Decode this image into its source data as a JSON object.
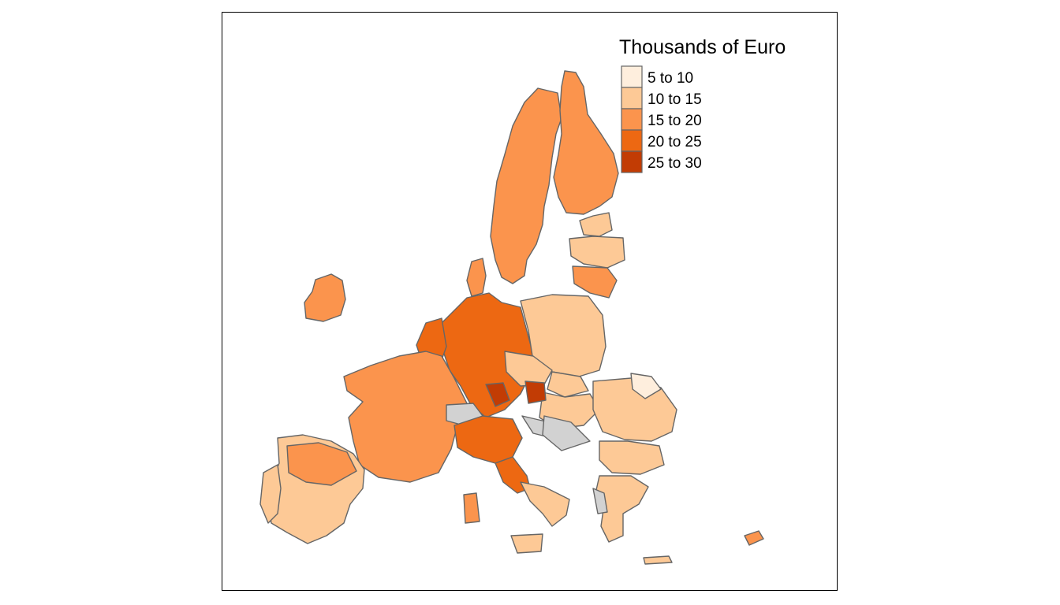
{
  "legend": {
    "title": "Thousands of Euro",
    "classes": [
      {
        "label": "5 to 10",
        "color": "#feeedd"
      },
      {
        "label": "10 to 15",
        "color": "#fdc996"
      },
      {
        "label": "15 to 20",
        "color": "#fb944d"
      },
      {
        "label": "20 to 25",
        "color": "#ed6812"
      },
      {
        "label": "25 to 30",
        "color": "#c23c04"
      }
    ],
    "missing_color": "#d2d2d2"
  }
}
